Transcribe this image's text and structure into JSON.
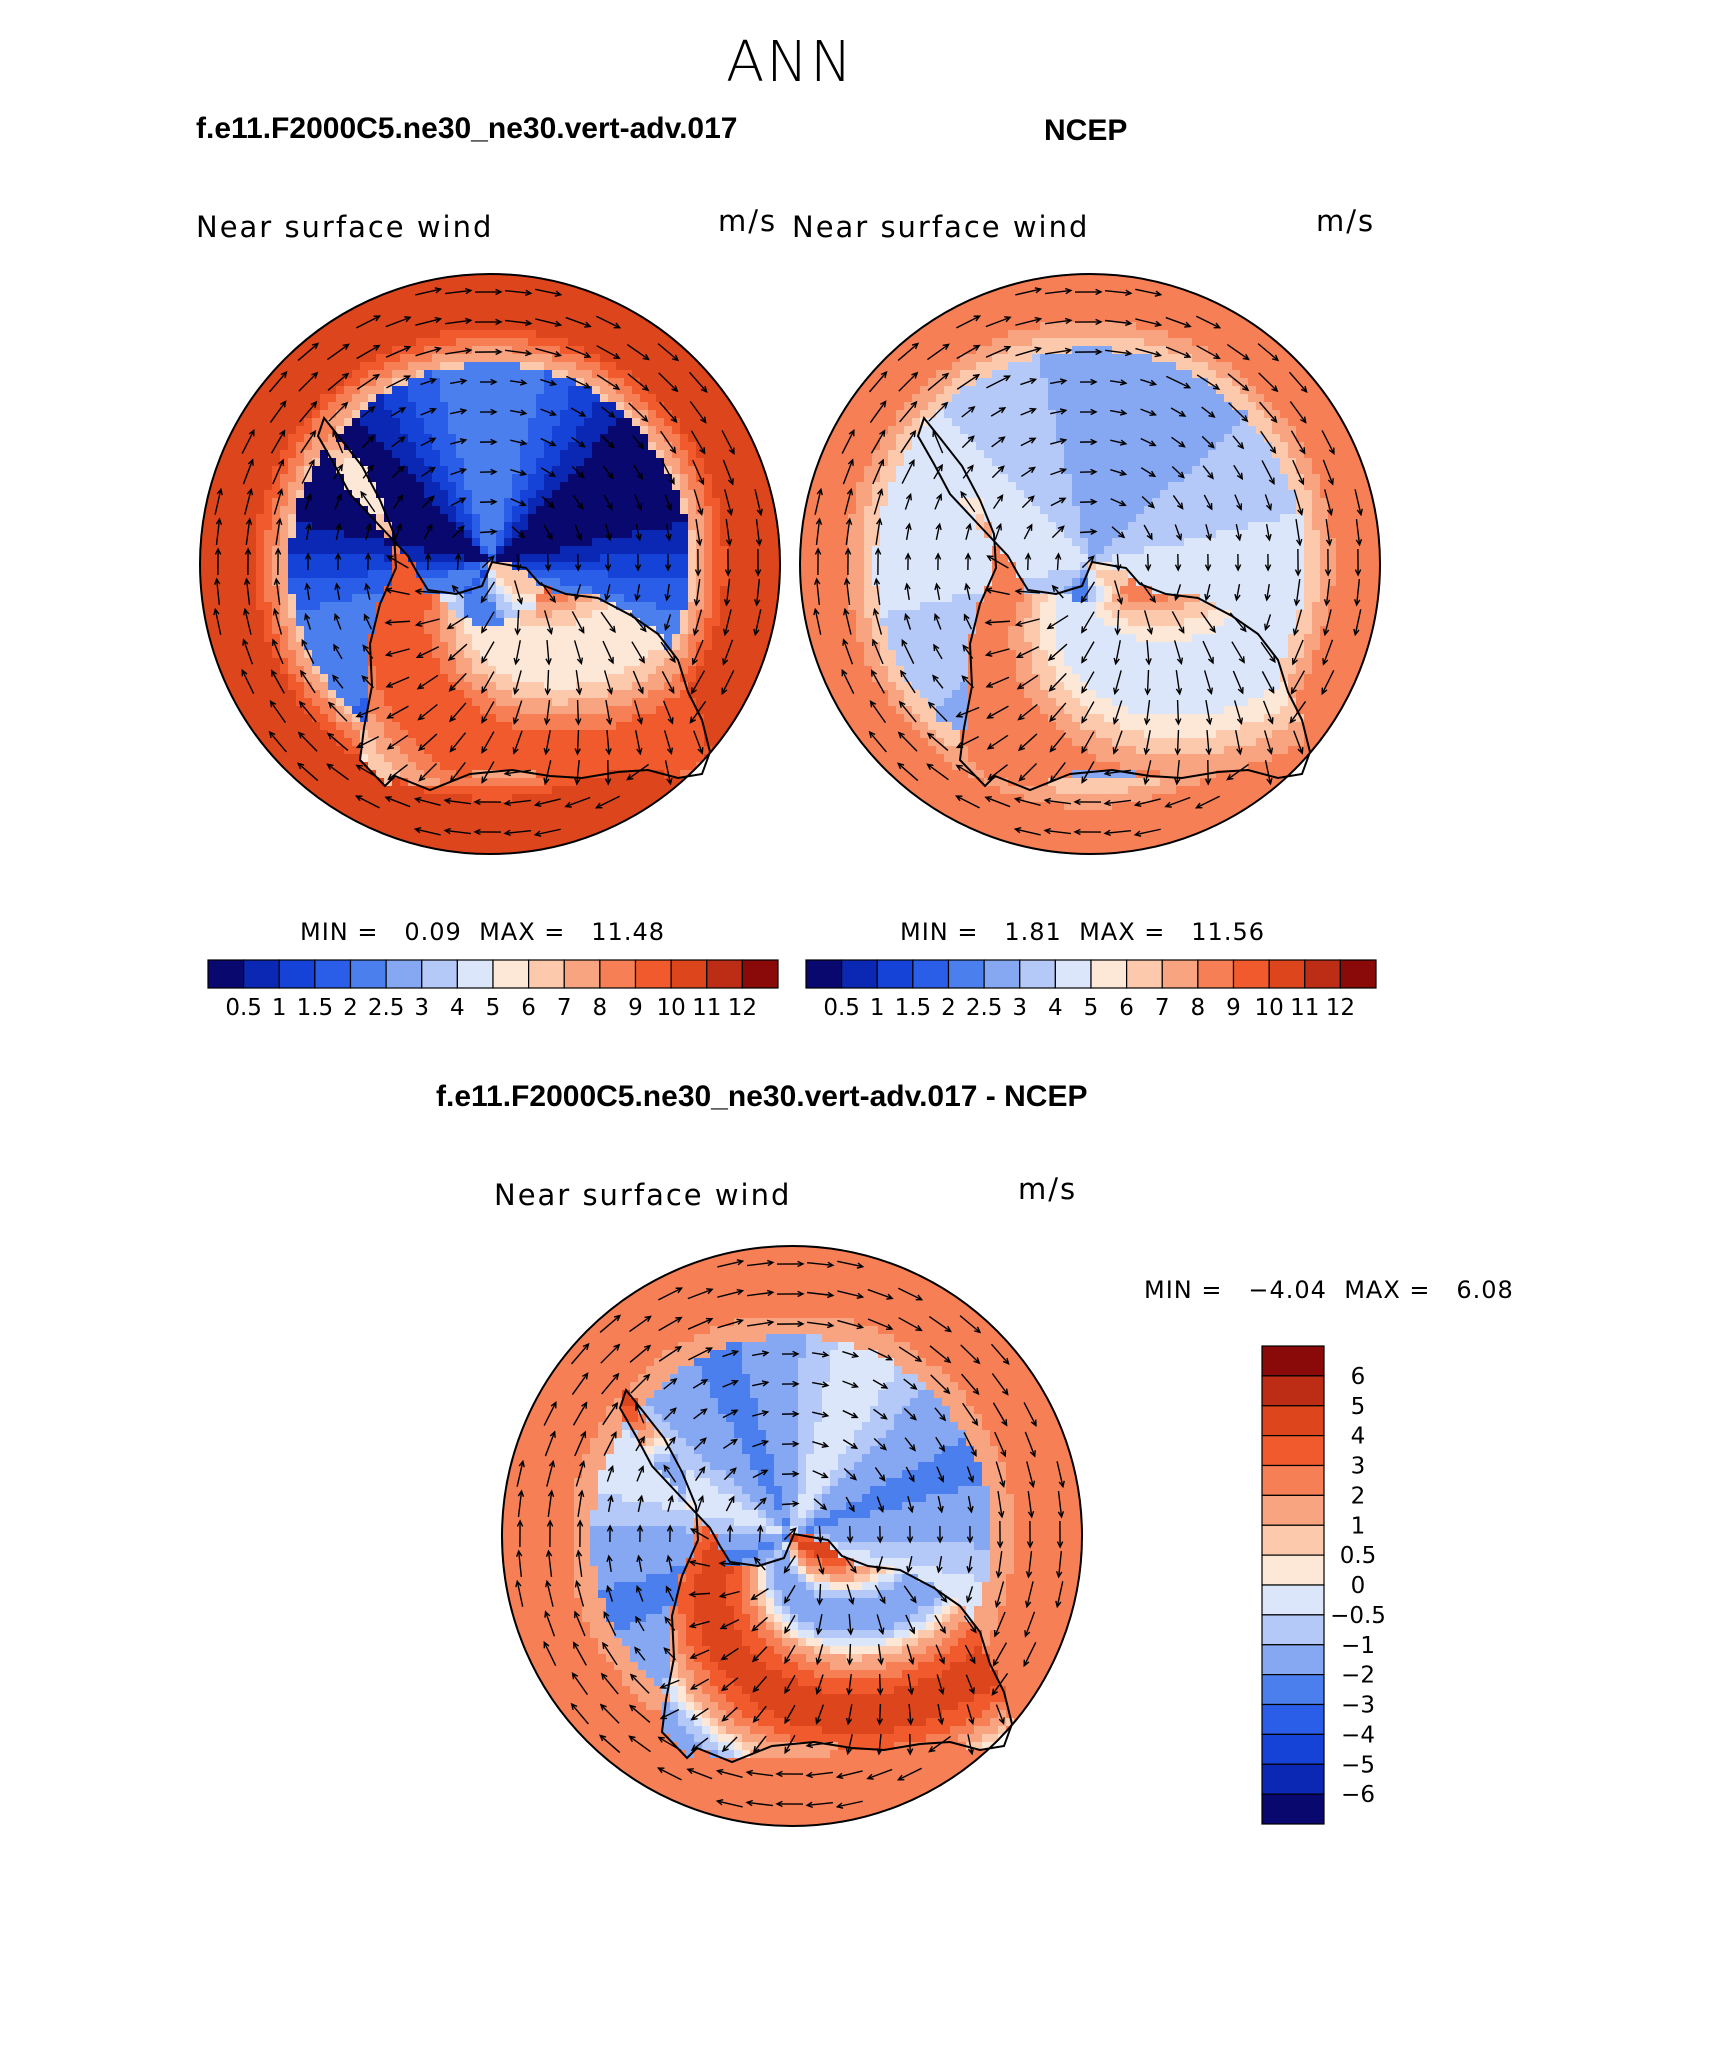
{
  "season": "ANN",
  "panels": [
    {
      "id": "model",
      "title": "f.e11.F2000C5.ne30_ne30.vert-adv.017",
      "variable": "Near surface wind",
      "units": "m/s",
      "min_label": "MIN =",
      "min_value": "0.09",
      "max_label": "MAX =",
      "max_value": "11.48",
      "field": "model"
    },
    {
      "id": "obs",
      "title": "NCEP",
      "variable": "Near surface wind",
      "units": "m/s",
      "min_label": "MIN =",
      "min_value": "1.81",
      "max_label": "MAX =",
      "max_value": "11.56",
      "field": "obs"
    },
    {
      "id": "diff",
      "title": "f.e11.F2000C5.ne30_ne30.vert-adv.017 - NCEP",
      "variable": "Near surface wind",
      "units": "m/s",
      "min_label": "MIN =",
      "min_value": "−4.04",
      "max_label": "MAX =",
      "max_value": "6.08",
      "field": "diff"
    }
  ],
  "abs_colorbar": {
    "labels": [
      "0.5",
      "1",
      "1.5",
      "2",
      "2.5",
      "3",
      "4",
      "5",
      "6",
      "7",
      "8",
      "9",
      "10",
      "11",
      "12"
    ],
    "colors": [
      "#08086e",
      "#0a28b4",
      "#1543d8",
      "#2a5ee8",
      "#4c7fee",
      "#86a8f3",
      "#b4c9f7",
      "#dbe6fb",
      "#fde8d8",
      "#fcc9ac",
      "#f9a480",
      "#f67f55",
      "#f05a2c",
      "#dd451c",
      "#bd2c14",
      "#8a0a0a"
    ]
  },
  "diff_colorbar": {
    "labels": [
      "6",
      "5",
      "4",
      "3",
      "2",
      "1",
      "0.5",
      "0",
      "−0.5",
      "−1",
      "−2",
      "−3",
      "−4",
      "−5",
      "−6"
    ],
    "colors": [
      "#8a0a0a",
      "#bd2c14",
      "#dd451c",
      "#f05a2c",
      "#f67f55",
      "#f9a480",
      "#fcc9ac",
      "#fde8d8",
      "#dbe6fb",
      "#b4c9f7",
      "#86a8f3",
      "#4c7fee",
      "#2a5ee8",
      "#1543d8",
      "#0a28b4",
      "#08086e"
    ]
  }
}
